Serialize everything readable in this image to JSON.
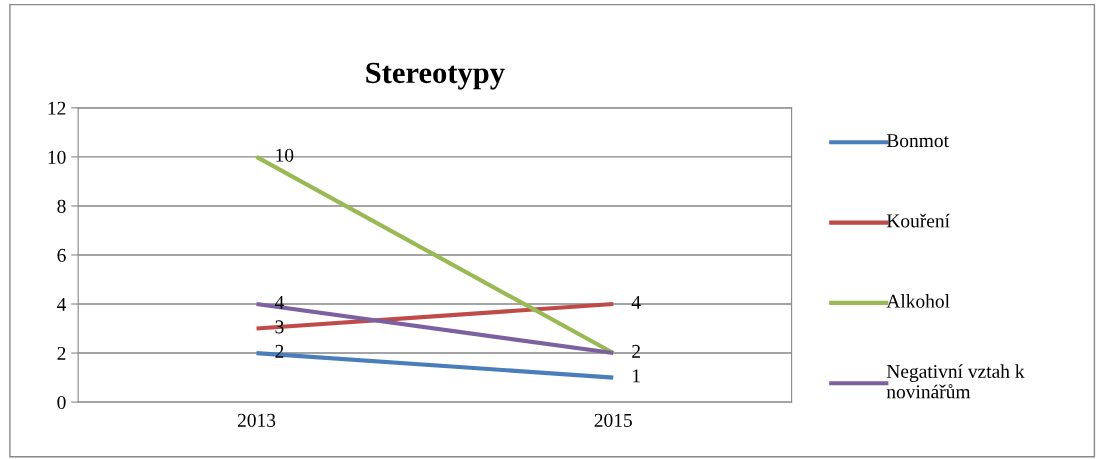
{
  "chart_data": {
    "type": "line",
    "title": "Stereotypy",
    "categories": [
      "2013",
      "2015"
    ],
    "series": [
      {
        "name": "Bonmot",
        "color": "#4a7ebb",
        "values": [
          2,
          1
        ]
      },
      {
        "name": "Kouření",
        "color": "#be4b48",
        "values": [
          3,
          4
        ]
      },
      {
        "name": "Alkohol",
        "color": "#98b954",
        "values": [
          10,
          2
        ]
      },
      {
        "name": "Negativní vztah k novinářům",
        "color": "#7d60a0",
        "values": [
          4,
          2
        ],
        "value_labels": [
          "4",
          null
        ]
      }
    ],
    "ylim": [
      0,
      12
    ],
    "yticks": [
      0,
      2,
      4,
      6,
      8,
      10,
      12
    ],
    "grid": "y",
    "legend": "right",
    "data_labels": true,
    "marker": "none",
    "line_style": "solid"
  }
}
